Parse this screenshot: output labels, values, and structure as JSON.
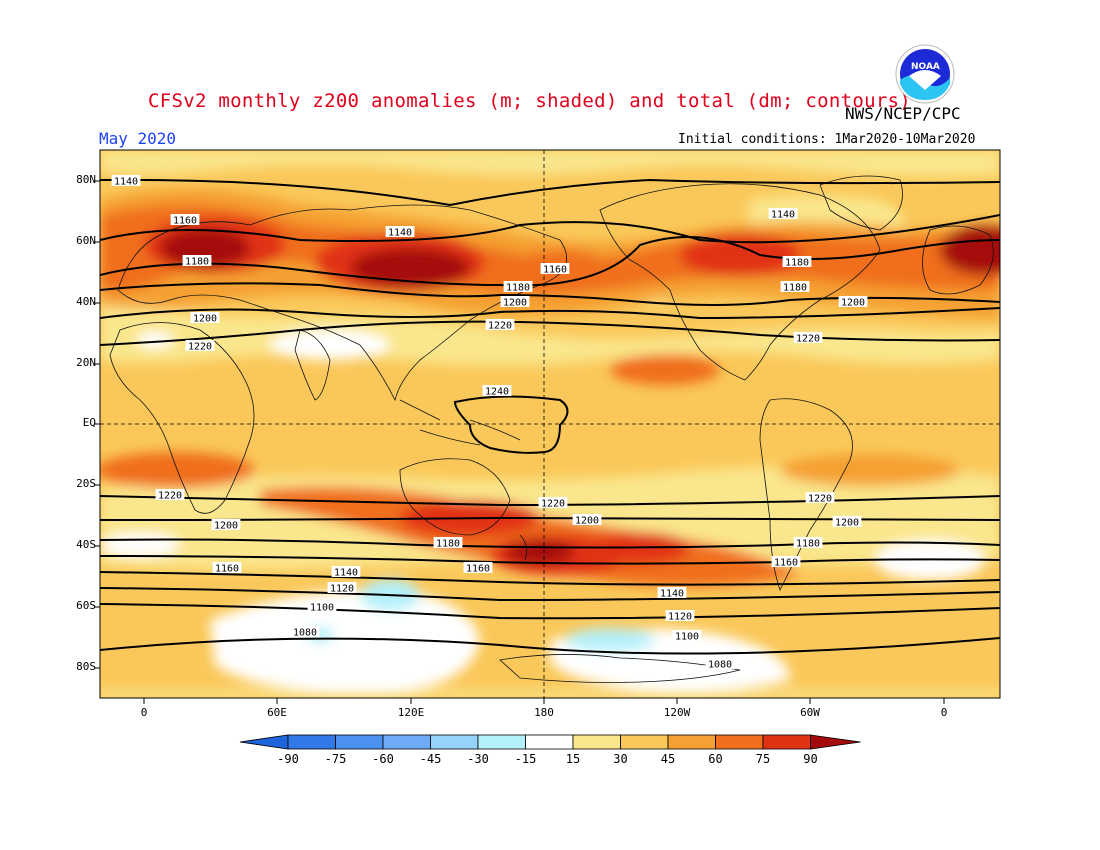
{
  "header": {
    "title": "CFSv2 monthly z200 anomalies (m; shaded) and total (dm; contours)",
    "org": "NWS/NCEP/CPC",
    "month": "May 2020",
    "initial_conditions": "Initial conditions: 1Mar2020-10Mar2020",
    "logo_text": "NOAA"
  },
  "axes": {
    "lat_labels": [
      "80N",
      "60N",
      "40N",
      "20N",
      "EQ",
      "20S",
      "40S",
      "60S",
      "80S"
    ],
    "lon_labels": [
      "0",
      "60E",
      "120E",
      "180",
      "120W",
      "60W",
      "0"
    ]
  },
  "colorbar": {
    "labels": [
      "-90",
      "-75",
      "-60",
      "-45",
      "-30",
      "-15",
      "15",
      "30",
      "45",
      "60",
      "75",
      "90"
    ],
    "colors": [
      "#1e64dc",
      "#3278e6",
      "#4b91f0",
      "#6eaaf5",
      "#96d2fa",
      "#b4f0fa",
      "#ffffff",
      "#fae68c",
      "#fac85a",
      "#f5a032",
      "#f06e1e",
      "#e13214",
      "#a50a0a"
    ]
  },
  "contour_labels": [
    "1140",
    "1160",
    "1180",
    "1200",
    "1220",
    "1240",
    "1120",
    "1100",
    "1080"
  ],
  "chart_data": {
    "type": "heatmap",
    "title": "CFSv2 monthly z200 anomalies (m; shaded) and total (dm; contours)",
    "xlabel": "",
    "ylabel": "",
    "x_ticks": [
      "0",
      "60E",
      "120E",
      "180",
      "120W",
      "60W",
      "0"
    ],
    "y_ticks": [
      "80N",
      "60N",
      "40N",
      "20N",
      "EQ",
      "20S",
      "40S",
      "60S",
      "80S"
    ],
    "shading_levels": [
      -90,
      -75,
      -60,
      -45,
      -30,
      -15,
      15,
      30,
      45,
      60,
      75,
      90
    ],
    "contour_levels_dm": [
      1080,
      1100,
      1120,
      1140,
      1160,
      1180,
      1200,
      1220,
      1240
    ],
    "period": "May 2020",
    "initial_conditions": "1Mar2020-10Mar2020"
  }
}
